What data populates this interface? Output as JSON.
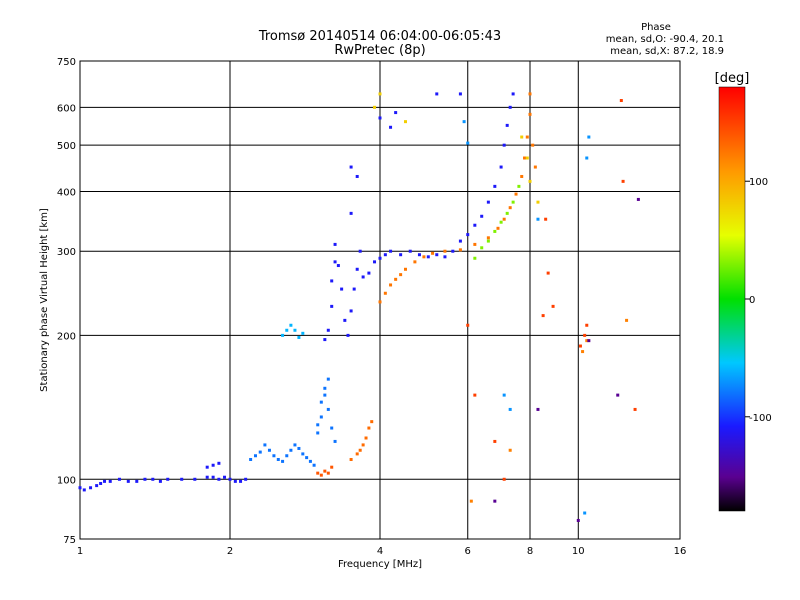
{
  "chart_data": {
    "type": "scatter",
    "title": "Tromsø 20140514 06:04:00-06:05:43",
    "subtitle": "RwPretec (8p)",
    "xlabel": "Frequency [MHz]",
    "ylabel": "Stationary phase Virtual Height [km]",
    "x_scale": "log",
    "y_scale": "log",
    "xlim": [
      1,
      16
    ],
    "ylim": [
      75,
      750
    ],
    "x_ticks": [
      "1",
      "2",
      "4",
      "6",
      "8",
      "10",
      "16"
    ],
    "x_tick_values": [
      1,
      2,
      4,
      6,
      8,
      10,
      16
    ],
    "y_ticks": [
      "750",
      "600",
      "500",
      "400",
      "300",
      "200",
      "100",
      "75"
    ],
    "y_tick_values": [
      750,
      600,
      500,
      400,
      300,
      200,
      100,
      75
    ],
    "grid": true,
    "phase_box": {
      "heading": "Phase",
      "line1": "mean, sd,O: -90.4, 20.1",
      "line2": "mean, sd,X:  87.2, 18.9"
    },
    "colorbar": {
      "label": "[deg]",
      "ticks": [
        "100",
        "0",
        "-100"
      ],
      "tick_values": [
        100,
        0,
        -100
      ],
      "range": [
        -180,
        180
      ]
    },
    "series": [
      {
        "phase": -110,
        "points": [
          [
            1.0,
            96
          ],
          [
            1.02,
            95
          ],
          [
            1.05,
            96
          ],
          [
            1.08,
            97
          ],
          [
            1.1,
            98
          ],
          [
            1.12,
            99
          ],
          [
            1.15,
            99
          ],
          [
            1.2,
            100
          ],
          [
            1.25,
            99
          ],
          [
            1.3,
            99
          ],
          [
            1.35,
            100
          ],
          [
            1.4,
            100
          ],
          [
            1.45,
            99
          ],
          [
            1.5,
            100
          ],
          [
            1.6,
            100
          ],
          [
            1.7,
            100
          ],
          [
            1.8,
            101
          ],
          [
            1.85,
            101
          ],
          [
            1.9,
            100
          ],
          [
            1.95,
            101
          ],
          [
            2.0,
            100
          ],
          [
            2.05,
            99
          ],
          [
            2.1,
            99
          ],
          [
            2.15,
            100
          ],
          [
            1.8,
            106
          ],
          [
            1.85,
            107
          ],
          [
            1.9,
            108
          ]
        ]
      },
      {
        "phase": -80,
        "points": [
          [
            2.2,
            110
          ],
          [
            2.25,
            112
          ],
          [
            2.3,
            114
          ],
          [
            2.35,
            118
          ],
          [
            2.4,
            115
          ],
          [
            2.45,
            112
          ],
          [
            2.5,
            110
          ],
          [
            2.55,
            109
          ],
          [
            2.6,
            112
          ],
          [
            2.65,
            115
          ],
          [
            2.7,
            118
          ],
          [
            2.75,
            116
          ],
          [
            2.8,
            113
          ],
          [
            2.85,
            111
          ],
          [
            2.9,
            109
          ],
          [
            2.95,
            107
          ],
          [
            3.0,
            125
          ],
          [
            3.0,
            130
          ],
          [
            3.05,
            135
          ],
          [
            3.05,
            145
          ],
          [
            3.1,
            150
          ],
          [
            3.1,
            155
          ],
          [
            3.15,
            162
          ],
          [
            3.15,
            140
          ],
          [
            3.2,
            128
          ],
          [
            3.25,
            120
          ]
        ]
      },
      {
        "phase": 140,
        "points": [
          [
            3.0,
            103
          ],
          [
            3.05,
            102
          ],
          [
            3.1,
            104
          ],
          [
            3.15,
            103
          ],
          [
            3.2,
            106
          ]
        ]
      },
      {
        "phase": 130,
        "points": [
          [
            3.5,
            110
          ],
          [
            3.6,
            113
          ],
          [
            3.65,
            115
          ],
          [
            3.7,
            118
          ],
          [
            3.75,
            122
          ],
          [
            3.8,
            128
          ],
          [
            3.85,
            132
          ]
        ]
      },
      {
        "phase": -60,
        "points": [
          [
            2.55,
            200
          ],
          [
            2.6,
            205
          ],
          [
            2.65,
            210
          ],
          [
            2.7,
            205
          ],
          [
            2.75,
            198
          ],
          [
            2.8,
            202
          ]
        ]
      },
      {
        "phase": -110,
        "points": [
          [
            3.1,
            196
          ],
          [
            3.15,
            205
          ],
          [
            3.2,
            230
          ],
          [
            3.2,
            260
          ],
          [
            3.25,
            285
          ],
          [
            3.25,
            310
          ],
          [
            3.3,
            280
          ],
          [
            3.35,
            250
          ],
          [
            3.4,
            215
          ],
          [
            3.45,
            200
          ],
          [
            3.5,
            225
          ],
          [
            3.55,
            250
          ],
          [
            3.6,
            275
          ],
          [
            3.65,
            300
          ],
          [
            3.7,
            265
          ],
          [
            3.8,
            270
          ],
          [
            3.9,
            285
          ],
          [
            4.0,
            290
          ],
          [
            4.1,
            295
          ],
          [
            4.2,
            300
          ],
          [
            4.4,
            295
          ],
          [
            4.6,
            300
          ],
          [
            4.8,
            295
          ],
          [
            5.0,
            292
          ],
          [
            5.2,
            295
          ],
          [
            5.4,
            292
          ],
          [
            5.6,
            300
          ],
          [
            5.8,
            315
          ],
          [
            6.0,
            325
          ],
          [
            6.2,
            340
          ],
          [
            6.4,
            355
          ],
          [
            6.6,
            380
          ],
          [
            6.8,
            410
          ],
          [
            7.0,
            450
          ],
          [
            7.1,
            500
          ],
          [
            7.2,
            550
          ],
          [
            7.3,
            600
          ],
          [
            7.4,
            640
          ],
          [
            3.5,
            360
          ],
          [
            3.6,
            430
          ],
          [
            3.5,
            450
          ],
          [
            4.2,
            545
          ],
          [
            4.0,
            570
          ],
          [
            4.3,
            585
          ],
          [
            5.2,
            640
          ],
          [
            5.8,
            640
          ]
        ]
      },
      {
        "phase": 125,
        "points": [
          [
            4.0,
            235
          ],
          [
            4.1,
            245
          ],
          [
            4.2,
            255
          ],
          [
            4.3,
            262
          ],
          [
            4.4,
            268
          ],
          [
            4.5,
            275
          ],
          [
            4.7,
            285
          ],
          [
            4.9,
            292
          ],
          [
            5.1,
            297
          ],
          [
            5.4,
            300
          ],
          [
            5.8,
            302
          ],
          [
            6.2,
            310
          ],
          [
            6.6,
            320
          ],
          [
            6.9,
            335
          ],
          [
            7.1,
            350
          ],
          [
            7.3,
            370
          ],
          [
            7.5,
            395
          ],
          [
            7.7,
            430
          ],
          [
            7.8,
            470
          ],
          [
            7.9,
            520
          ],
          [
            8.0,
            580
          ],
          [
            8.0,
            640
          ],
          [
            8.1,
            500
          ],
          [
            8.2,
            450
          ]
        ]
      },
      {
        "phase": 80,
        "points": [
          [
            3.9,
            600
          ],
          [
            4.0,
            640
          ],
          [
            4.5,
            560
          ],
          [
            7.7,
            520
          ],
          [
            7.9,
            470
          ],
          [
            8.0,
            420
          ],
          [
            8.3,
            380
          ]
        ]
      },
      {
        "phase": 30,
        "points": [
          [
            6.2,
            290
          ],
          [
            6.4,
            305
          ],
          [
            6.6,
            315
          ],
          [
            6.8,
            330
          ],
          [
            7.0,
            345
          ],
          [
            7.2,
            360
          ],
          [
            7.4,
            380
          ],
          [
            7.6,
            410
          ]
        ]
      },
      {
        "phase": -70,
        "points": [
          [
            5.9,
            560
          ],
          [
            6.0,
            505
          ],
          [
            7.1,
            150
          ],
          [
            7.3,
            140
          ],
          [
            8.3,
            350
          ],
          [
            10.4,
            470
          ],
          [
            10.5,
            520
          ],
          [
            10.3,
            85
          ]
        ]
      },
      {
        "phase": 150,
        "points": [
          [
            6.0,
            210
          ],
          [
            6.2,
            150
          ],
          [
            6.8,
            120
          ],
          [
            7.1,
            100
          ],
          [
            8.5,
            220
          ],
          [
            8.6,
            350
          ],
          [
            8.7,
            270
          ],
          [
            8.9,
            230
          ],
          [
            10.1,
            190
          ],
          [
            10.3,
            200
          ],
          [
            10.4,
            210
          ],
          [
            12.2,
            620
          ],
          [
            12.3,
            420
          ],
          [
            13.0,
            140
          ]
        ]
      },
      {
        "phase": 120,
        "points": [
          [
            6.1,
            90
          ],
          [
            7.3,
            115
          ],
          [
            10.2,
            185
          ],
          [
            10.4,
            195
          ],
          [
            12.5,
            215
          ]
        ]
      },
      {
        "phase": -150,
        "points": [
          [
            6.8,
            90
          ],
          [
            8.3,
            140
          ],
          [
            10.0,
            82
          ],
          [
            10.5,
            195
          ],
          [
            12.0,
            150
          ],
          [
            13.2,
            385
          ]
        ]
      }
    ]
  }
}
